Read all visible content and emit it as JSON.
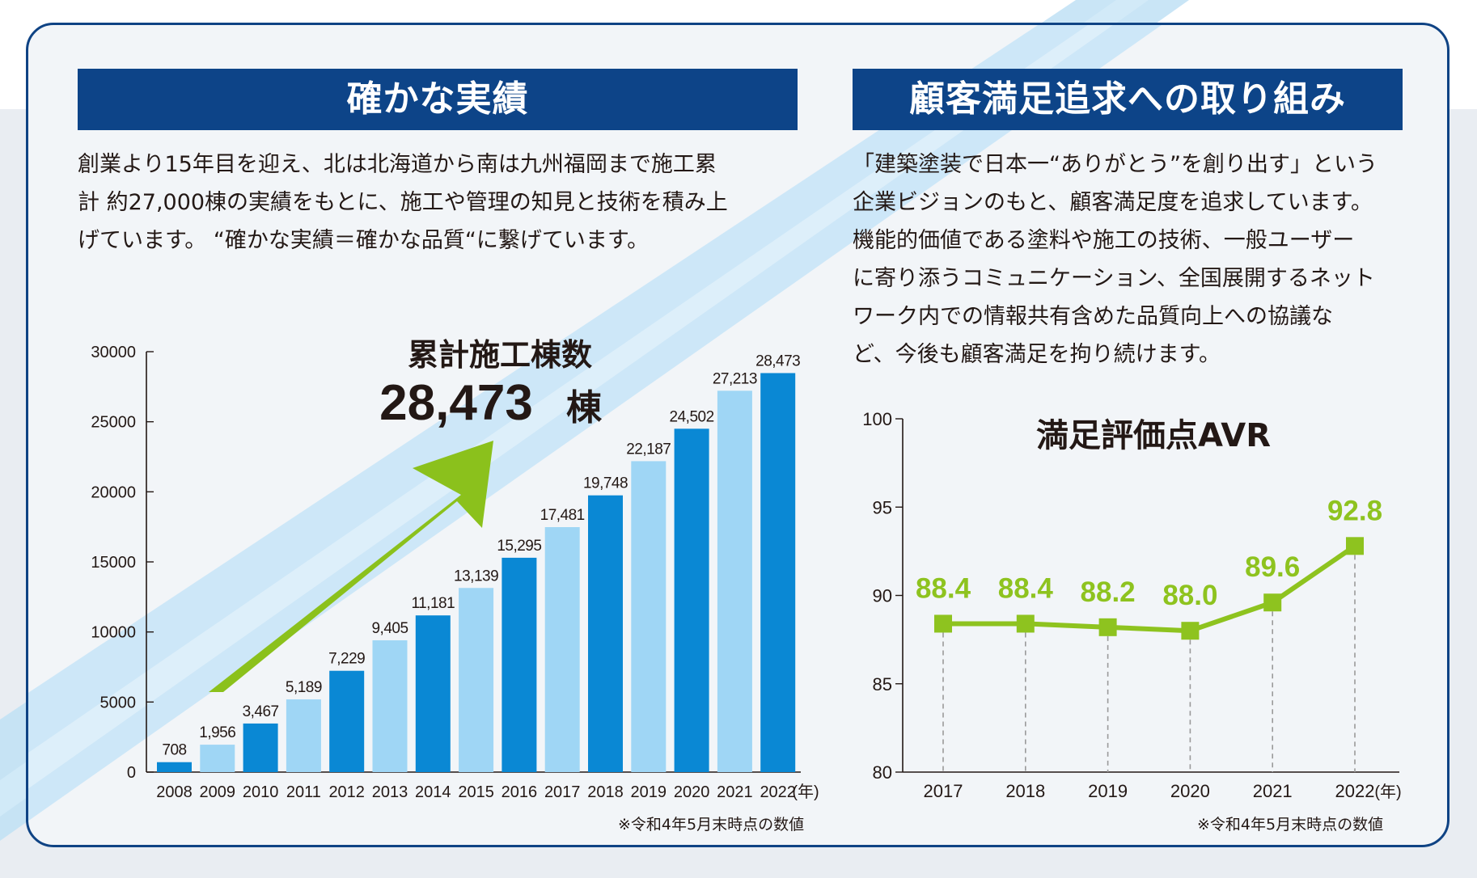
{
  "colors": {
    "navy": "#0d4488",
    "bar_dark": "#0a88d4",
    "bar_light": "#9fd6f5",
    "green": "#8ec31f",
    "arrow_green": "#8bc11c"
  },
  "left_panel": {
    "title": "確かな実績",
    "paragraph_lines": [
      "創業より15年目を迎え、北は北海道から南は九州福岡まで施工累",
      "計 約27,000棟の実績をもとに、施工や管理の知見と技術を積み上",
      "げています。 “確かな実績＝確かな品質“に繋げています。"
    ],
    "note": "※令和4年5月末時点の数値"
  },
  "right_panel": {
    "title": "顧客満足追求への取り組み",
    "paragraph_lines": [
      "「建築塗装で日本一“ありがとう”を創り出す」という",
      "企業ビジョンのもと、顧客満足度を追求しています。",
      "機能的価値である塗料や施工の技術、一般ユーザー",
      "に寄り添うコミュニケーション、全国展開するネット",
      "ワーク内での情報共有含めた品質向上への協議な",
      "ど、今後も顧客満足を拘り続けます。"
    ],
    "note": "※令和4年5月末時点の数値"
  },
  "chart_data": [
    {
      "type": "bar",
      "title": "累計施工棟数",
      "headline_value": "28,473",
      "headline_unit": "棟",
      "x_unit": "(年)",
      "categories": [
        "2008",
        "2009",
        "2010",
        "2011",
        "2012",
        "2013",
        "2014",
        "2015",
        "2016",
        "2017",
        "2018",
        "2019",
        "2020",
        "2021",
        "2022"
      ],
      "values": [
        708,
        1956,
        3467,
        5189,
        7229,
        9405,
        11181,
        13139,
        15295,
        17481,
        19748,
        22187,
        24502,
        27213,
        28473
      ],
      "value_labels": [
        "708",
        "1,956",
        "3,467",
        "5,189",
        "7,229",
        "9,405",
        "11,181",
        "13,139",
        "15,295",
        "17,481",
        "19,748",
        "22,187",
        "24,502",
        "27,213",
        "28,473"
      ],
      "bar_shades": [
        "dark",
        "light",
        "dark",
        "light",
        "dark",
        "light",
        "dark",
        "light",
        "dark",
        "light",
        "dark",
        "light",
        "dark",
        "light",
        "dark"
      ],
      "ylim": [
        0,
        30000
      ],
      "yticks": [
        0,
        5000,
        10000,
        15000,
        20000,
        25000,
        30000
      ],
      "ytick_labels": [
        "0",
        "5000",
        "10000",
        "15000",
        "20000",
        "25000",
        "30000"
      ],
      "xlabel": "",
      "ylabel": "",
      "grid": false
    },
    {
      "type": "line",
      "title": "満足評価点AVR",
      "x_unit": "(年)",
      "categories": [
        "2017",
        "2018",
        "2019",
        "2020",
        "2021",
        "2022"
      ],
      "values": [
        88.4,
        88.4,
        88.2,
        88.0,
        89.6,
        92.8
      ],
      "value_labels": [
        "88.4",
        "88.4",
        "88.2",
        "88.0",
        "89.6",
        "92.8"
      ],
      "ylim": [
        80,
        100
      ],
      "yticks": [
        80,
        85,
        90,
        95,
        100
      ],
      "ytick_labels": [
        "80",
        "85",
        "90",
        "95",
        "100"
      ],
      "xlabel": "",
      "ylabel": "",
      "grid": false
    }
  ]
}
